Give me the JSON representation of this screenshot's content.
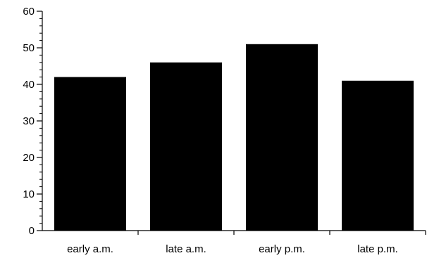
{
  "chart_data": {
    "type": "bar",
    "categories": [
      "early a.m.",
      "late a.m.",
      "early p.m.",
      "late p.m."
    ],
    "values": [
      42,
      46,
      51,
      41
    ],
    "ylim": [
      0,
      60
    ],
    "yticks": [
      "0",
      "10",
      "20",
      "30",
      "40",
      "50",
      "60"
    ],
    "grid": false,
    "legend": "none",
    "bar_color": "#000000",
    "axis_color": "#000000"
  }
}
